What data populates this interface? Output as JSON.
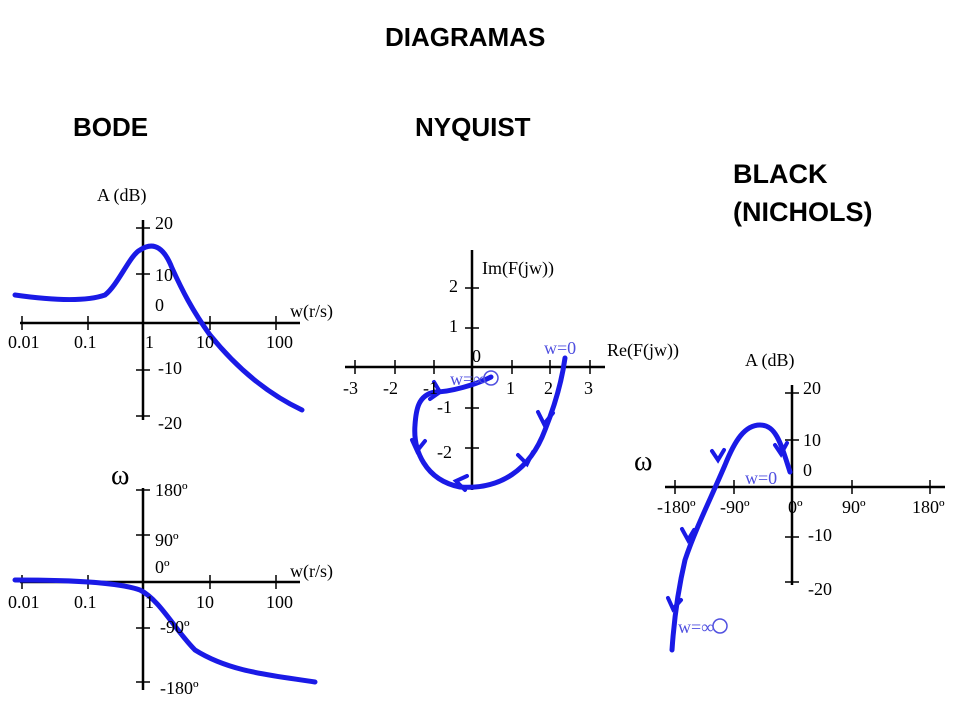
{
  "title": "DIAGRAMAS",
  "sections": {
    "bode": "BODE",
    "nyquist": "NYQUIST",
    "black_line1": "BLACK",
    "black_line2": "(NICHOLS)"
  },
  "bode_mag": {
    "ylabel": "A (dB)",
    "xlabel": "w(r/s)",
    "y_ticks": [
      "20",
      "10",
      "0",
      "-10",
      "-20"
    ],
    "x_ticks": [
      "0.01",
      "0.1",
      "1",
      "10",
      "100"
    ]
  },
  "bode_phase": {
    "symbol": "ω",
    "xlabel": "w(r/s)",
    "y_ticks": [
      "180º",
      "90º",
      "0º",
      "-90º",
      "-180º"
    ],
    "x_ticks": [
      "0.01",
      "0.1",
      "1",
      "10",
      "100"
    ]
  },
  "nyquist": {
    "ylabel": "Im(F(jw))",
    "xlabel": "Re(F(jw))",
    "y_ticks": [
      "2",
      "1",
      "0",
      "-1",
      "-2"
    ],
    "x_ticks": [
      "-3",
      "-2",
      "-1",
      "1",
      "2",
      "3"
    ],
    "w_zero_label": "w=0",
    "w_inf_label": "w=",
    "inf_symbol": "∞"
  },
  "black": {
    "symbol": "ω",
    "ylabel": "A (dB)",
    "y_ticks": [
      "20",
      "10",
      "0",
      "-10",
      "-20"
    ],
    "x_ticks": [
      "-180º",
      "-90º",
      "0º",
      "90º",
      "180º"
    ],
    "w_zero_label": "w=0",
    "w_inf_label": "w=",
    "inf_symbol": "∞"
  },
  "colors": {
    "curve": "#1a1ae6",
    "annotation": "#5050e0",
    "axis": "#000000"
  }
}
